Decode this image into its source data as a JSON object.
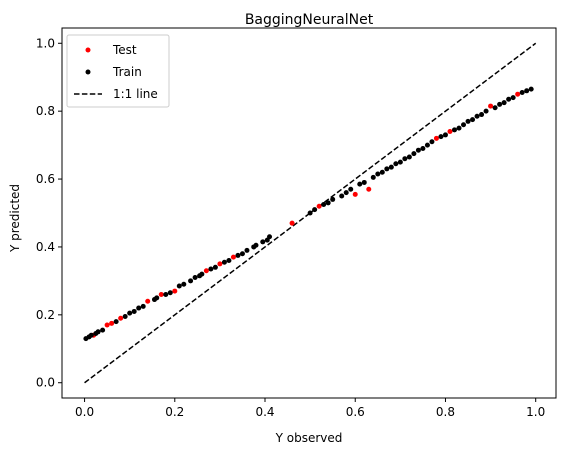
{
  "chart_data": {
    "type": "scatter",
    "title": "BaggingNeuralNet",
    "xlabel": "Y observed",
    "ylabel": "Y predicted",
    "xlim": [
      -0.05,
      1.045
    ],
    "ylim": [
      -0.045,
      1.045
    ],
    "xticks": [
      "0.0",
      "0.2",
      "0.4",
      "0.6",
      "0.8",
      "1.0"
    ],
    "yticks": [
      "0.0",
      "0.2",
      "0.4",
      "0.6",
      "0.8",
      "1.0"
    ],
    "grid": false,
    "legend_position": "top-left",
    "legend": [
      "Test",
      "Train",
      "1:1 line"
    ],
    "series": [
      {
        "name": "Test",
        "kind": "points",
        "color": "#ff0000",
        "x": [
          0.02,
          0.05,
          0.06,
          0.08,
          0.14,
          0.17,
          0.2,
          0.27,
          0.3,
          0.33,
          0.46,
          0.52,
          0.6,
          0.63,
          0.78,
          0.81,
          0.9,
          0.96
        ],
        "y": [
          0.14,
          0.17,
          0.175,
          0.19,
          0.24,
          0.26,
          0.27,
          0.33,
          0.35,
          0.37,
          0.47,
          0.52,
          0.555,
          0.57,
          0.72,
          0.74,
          0.815,
          0.85
        ]
      },
      {
        "name": "Train",
        "kind": "points",
        "color": "#000000",
        "x": [
          0.003,
          0.01,
          0.015,
          0.025,
          0.03,
          0.04,
          0.07,
          0.09,
          0.1,
          0.11,
          0.12,
          0.13,
          0.155,
          0.16,
          0.18,
          0.19,
          0.21,
          0.22,
          0.235,
          0.245,
          0.255,
          0.26,
          0.28,
          0.29,
          0.31,
          0.32,
          0.34,
          0.35,
          0.36,
          0.375,
          0.38,
          0.395,
          0.405,
          0.41,
          0.5,
          0.51,
          0.53,
          0.54,
          0.55,
          0.57,
          0.58,
          0.59,
          0.61,
          0.62,
          0.64,
          0.65,
          0.66,
          0.67,
          0.68,
          0.69,
          0.7,
          0.71,
          0.72,
          0.73,
          0.74,
          0.75,
          0.76,
          0.77,
          0.79,
          0.8,
          0.82,
          0.83,
          0.84,
          0.85,
          0.86,
          0.87,
          0.88,
          0.89,
          0.91,
          0.92,
          0.93,
          0.94,
          0.95,
          0.97,
          0.98,
          0.99
        ],
        "y": [
          0.13,
          0.135,
          0.14,
          0.145,
          0.15,
          0.155,
          0.18,
          0.195,
          0.205,
          0.21,
          0.22,
          0.225,
          0.245,
          0.25,
          0.26,
          0.265,
          0.285,
          0.29,
          0.3,
          0.31,
          0.315,
          0.32,
          0.335,
          0.34,
          0.355,
          0.36,
          0.375,
          0.38,
          0.39,
          0.4,
          0.405,
          0.415,
          0.42,
          0.43,
          0.5,
          0.51,
          0.525,
          0.53,
          0.54,
          0.55,
          0.56,
          0.57,
          0.585,
          0.59,
          0.605,
          0.615,
          0.62,
          0.63,
          0.635,
          0.645,
          0.65,
          0.66,
          0.665,
          0.675,
          0.685,
          0.69,
          0.7,
          0.71,
          0.725,
          0.73,
          0.745,
          0.75,
          0.76,
          0.77,
          0.775,
          0.785,
          0.79,
          0.8,
          0.81,
          0.82,
          0.825,
          0.835,
          0.84,
          0.855,
          0.86,
          0.865
        ]
      },
      {
        "name": "1:1 line",
        "kind": "dashed-line",
        "color": "#000000",
        "x": [
          0.0,
          1.0
        ],
        "y": [
          0.0,
          1.0
        ]
      }
    ]
  }
}
